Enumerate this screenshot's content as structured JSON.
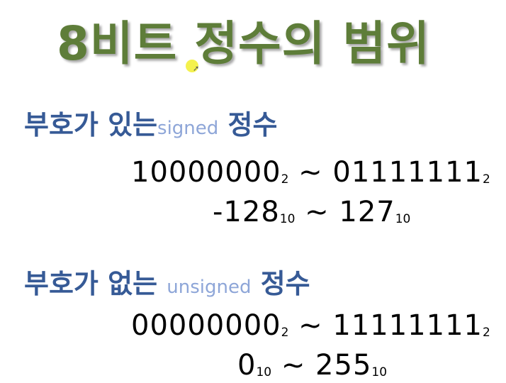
{
  "title": "8비트 정수의 범위",
  "signed": {
    "heading": "부호가 있는",
    "english": "signed",
    "suffix": "정수",
    "binary_min": "10000000",
    "binary_max": "01111111",
    "base2": "2",
    "tilde": "~",
    "decimal_min": "-128",
    "decimal_max": "127",
    "base10": "10"
  },
  "unsigned": {
    "heading": "부호가 없는",
    "english": "unsigned",
    "suffix": "정수",
    "binary_min": "00000000",
    "binary_max": "11111111",
    "base2": "2",
    "tilde": "~",
    "decimal_min": "0",
    "decimal_max": "255",
    "base10": "10"
  },
  "colors": {
    "title": "#5e7d39",
    "heading": "#365a96",
    "english_word": "#8ea6d8",
    "range_text": "#000000"
  },
  "icons": [
    "cursor-highlight-icon",
    "mouse-pointer-icon"
  ]
}
